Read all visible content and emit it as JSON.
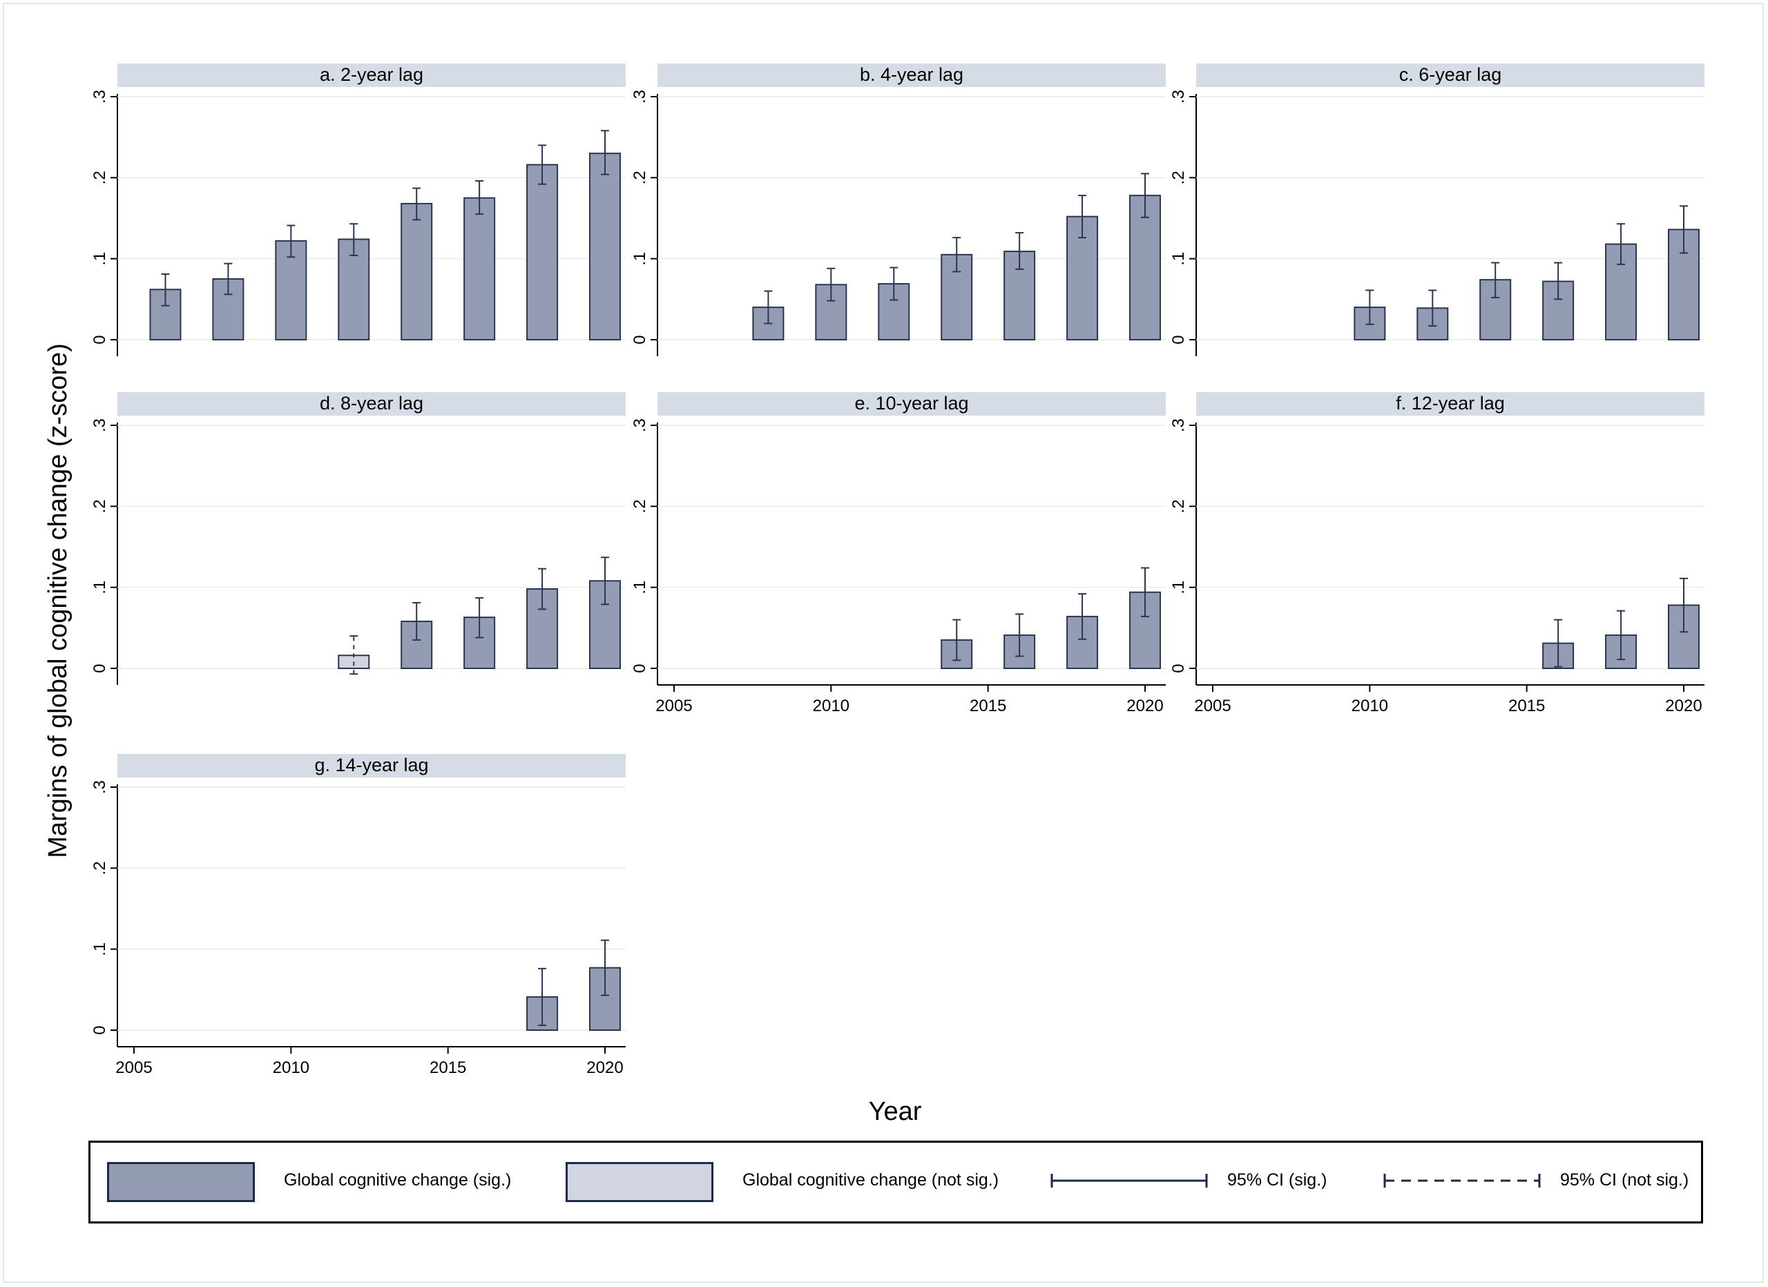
{
  "colors": {
    "bar_sig": "#949cb3",
    "bar_not_sig": "#d0d5e0",
    "bar_edge": "#2a3550",
    "strip": "#d6dce6",
    "grid": "#e8eaee",
    "axis": "#000000"
  },
  "y_axis_label": "Margins of global cognitive change (z-score)",
  "x_axis_label": "Year",
  "legend": {
    "sig_label": "Global cognitive change (sig.)",
    "not_sig_label": "Global cognitive change (not sig.)",
    "ci_sig_label": "95% CI (sig.)",
    "ci_not_sig_label": "95% CI (not sig.)"
  },
  "chart_data": {
    "type": "bar",
    "xlabel": "Year",
    "ylabel": "Margins of global cognitive change (z-score)",
    "xlim": [
      2005,
      2020
    ],
    "ylim": [
      0,
      0.3
    ],
    "x_ticks": [
      "2005",
      "2010",
      "2015",
      "2020"
    ],
    "y_ticks": [
      "0",
      ".1",
      ".2",
      ".3"
    ],
    "grid": true,
    "legend_position": "bottom",
    "panels": [
      {
        "title": "a. 2-year lag",
        "x": [
          2006,
          2008,
          2010,
          2012,
          2014,
          2016,
          2018,
          2020
        ],
        "values": [
          0.062,
          0.075,
          0.122,
          0.124,
          0.168,
          0.175,
          0.216,
          0.23
        ],
        "ci_low": [
          0.042,
          0.056,
          0.102,
          0.104,
          0.148,
          0.155,
          0.192,
          0.204
        ],
        "ci_high": [
          0.081,
          0.094,
          0.141,
          0.143,
          0.187,
          0.196,
          0.24,
          0.258
        ],
        "significant": [
          true,
          true,
          true,
          true,
          true,
          true,
          true,
          true
        ]
      },
      {
        "title": "b. 4-year lag",
        "x": [
          2008,
          2010,
          2012,
          2014,
          2016,
          2018,
          2020
        ],
        "values": [
          0.04,
          0.068,
          0.069,
          0.105,
          0.109,
          0.152,
          0.178
        ],
        "ci_low": [
          0.02,
          0.048,
          0.049,
          0.084,
          0.087,
          0.126,
          0.151
        ],
        "ci_high": [
          0.06,
          0.088,
          0.089,
          0.126,
          0.132,
          0.178,
          0.205
        ],
        "significant": [
          true,
          true,
          true,
          true,
          true,
          true,
          true
        ]
      },
      {
        "title": "c. 6-year lag",
        "x": [
          2010,
          2012,
          2014,
          2016,
          2018,
          2020
        ],
        "values": [
          0.04,
          0.039,
          0.074,
          0.072,
          0.118,
          0.136
        ],
        "ci_low": [
          0.019,
          0.017,
          0.052,
          0.05,
          0.093,
          0.107
        ],
        "ci_high": [
          0.061,
          0.061,
          0.095,
          0.095,
          0.143,
          0.165
        ],
        "significant": [
          true,
          true,
          true,
          true,
          true,
          true
        ]
      },
      {
        "title": "d. 8-year lag",
        "x": [
          2012,
          2014,
          2016,
          2018,
          2020
        ],
        "values": [
          0.016,
          0.058,
          0.063,
          0.098,
          0.108
        ],
        "ci_low": [
          -0.007,
          0.035,
          0.038,
          0.073,
          0.079
        ],
        "ci_high": [
          0.04,
          0.081,
          0.087,
          0.123,
          0.137
        ],
        "significant": [
          false,
          true,
          true,
          true,
          true
        ]
      },
      {
        "title": "e. 10-year lag",
        "x": [
          2014,
          2016,
          2018,
          2020
        ],
        "values": [
          0.035,
          0.041,
          0.064,
          0.094
        ],
        "ci_low": [
          0.01,
          0.015,
          0.036,
          0.064
        ],
        "ci_high": [
          0.06,
          0.067,
          0.092,
          0.124
        ],
        "significant": [
          true,
          true,
          true,
          true
        ]
      },
      {
        "title": "f. 12-year lag",
        "x": [
          2016,
          2018,
          2020
        ],
        "values": [
          0.031,
          0.041,
          0.078
        ],
        "ci_low": [
          0.002,
          0.011,
          0.045
        ],
        "ci_high": [
          0.06,
          0.071,
          0.111
        ],
        "significant": [
          true,
          true,
          true
        ]
      },
      {
        "title": "g. 14-year lag",
        "x": [
          2018,
          2020
        ],
        "values": [
          0.041,
          0.077
        ],
        "ci_low": [
          0.006,
          0.043
        ],
        "ci_high": [
          0.076,
          0.111
        ],
        "significant": [
          true,
          true
        ]
      }
    ]
  }
}
